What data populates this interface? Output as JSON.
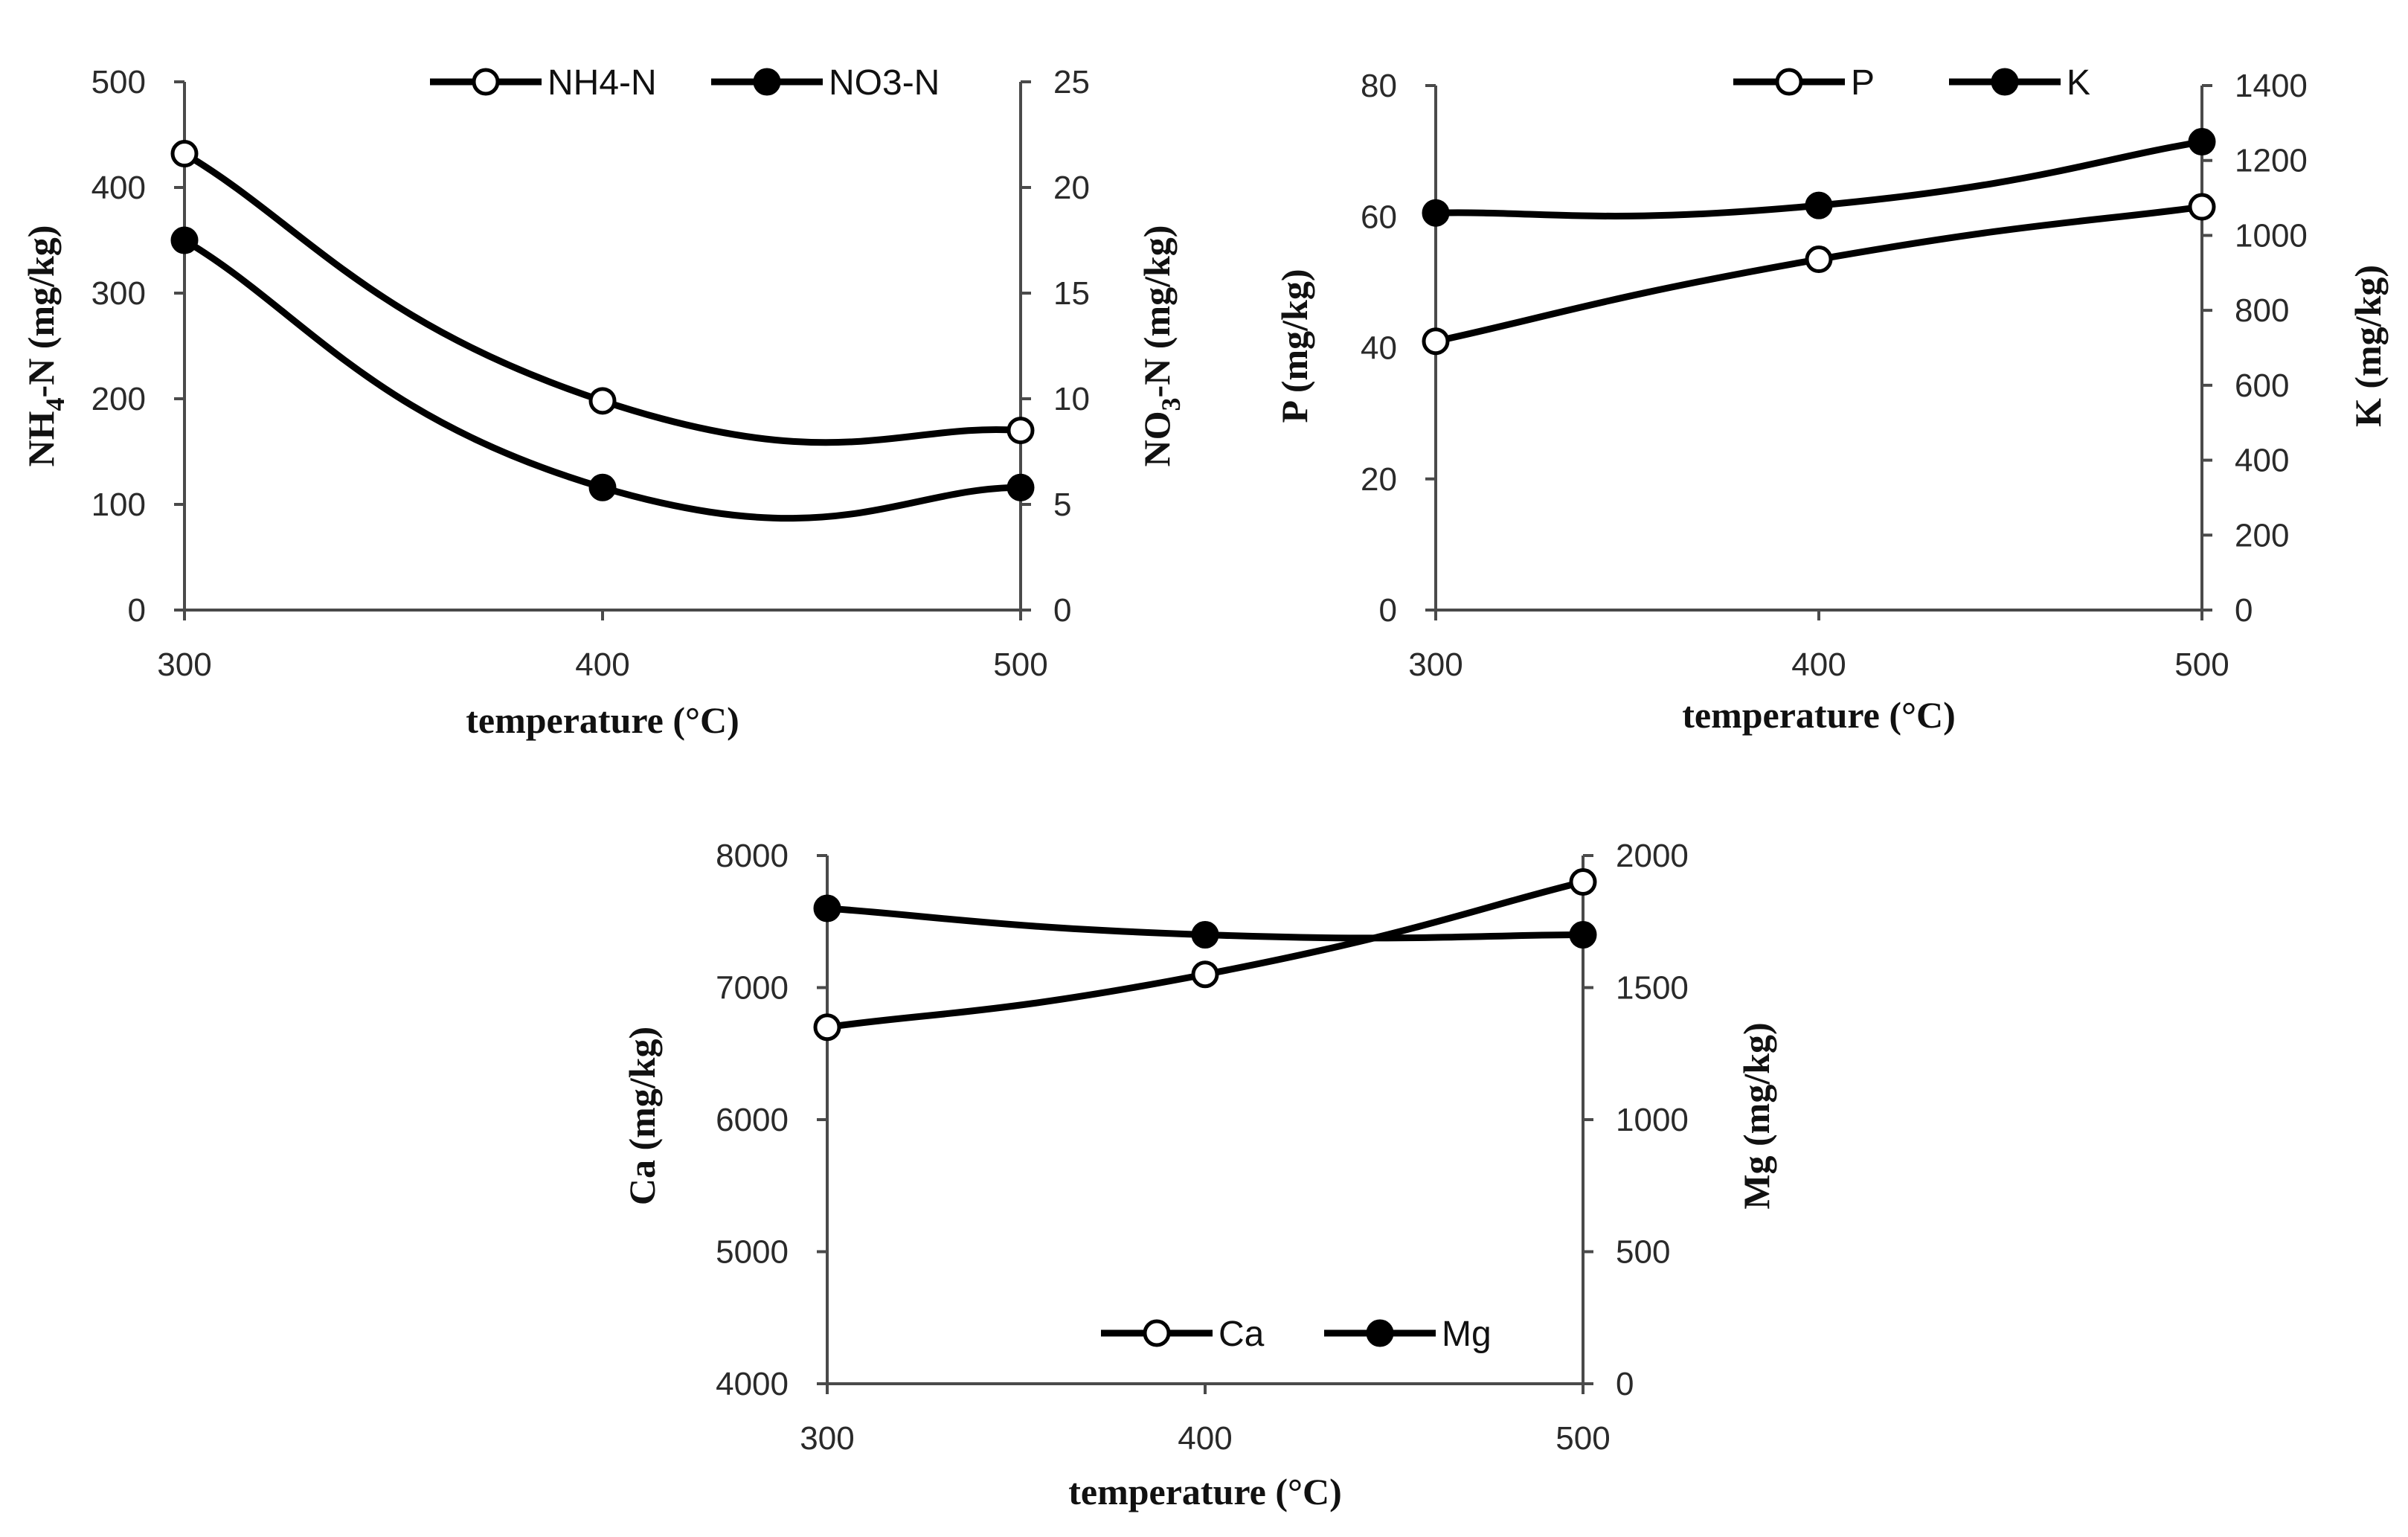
{
  "colors": {
    "line": "#000000",
    "axis": "#4a4a4a",
    "open_marker_fill": "#ffffff",
    "filled_marker_fill": "#000000"
  },
  "chart_data": [
    {
      "type": "line",
      "panel": "top-left",
      "x": [
        300,
        400,
        500
      ],
      "x_tick_labels": [
        "300",
        "400",
        "500"
      ],
      "xlabel": "temperature (°C)",
      "ylabel_left": {
        "base": "NH",
        "sub": "4",
        "rest": "-N (mg/kg)"
      },
      "ylabel_right": {
        "base": "NO",
        "sub": "3",
        "rest": "-N (mg/kg)"
      },
      "y_left_range": [
        0,
        500
      ],
      "y_left_ticks": [
        0,
        100,
        200,
        300,
        400,
        500
      ],
      "y_right_range": [
        0,
        25
      ],
      "y_right_ticks": [
        0,
        5,
        10,
        15,
        20,
        25
      ],
      "legend_position": "top-right",
      "series": [
        {
          "name": "NH4-N",
          "axis": "left",
          "marker": "open",
          "values": [
            432,
            198,
            170
          ]
        },
        {
          "name": "NO3-N",
          "axis": "right",
          "marker": "filled",
          "values": [
            17.5,
            5.8,
            5.8
          ]
        }
      ]
    },
    {
      "type": "line",
      "panel": "top-right",
      "x": [
        300,
        400,
        500
      ],
      "x_tick_labels": [
        "300",
        "400",
        "500"
      ],
      "xlabel": "temperature (°C)",
      "ylabel_left": {
        "base": "P (mg/kg)",
        "sub": "",
        "rest": ""
      },
      "ylabel_right": {
        "base": "K (mg/kg)",
        "sub": "",
        "rest": ""
      },
      "y_left_range": [
        0,
        80
      ],
      "y_left_ticks": [
        0,
        20,
        40,
        60,
        80
      ],
      "y_right_range": [
        0,
        1400
      ],
      "y_right_ticks": [
        0,
        200,
        400,
        600,
        800,
        1000,
        1200,
        1400
      ],
      "legend_position": "top-right",
      "series": [
        {
          "name": "P",
          "axis": "left",
          "marker": "open",
          "values": [
            41,
            53.5,
            61.5
          ]
        },
        {
          "name": "K",
          "axis": "right",
          "marker": "filled",
          "values": [
            1060,
            1080,
            1250
          ]
        }
      ]
    },
    {
      "type": "line",
      "panel": "bottom-center",
      "x": [
        300,
        400,
        500
      ],
      "x_tick_labels": [
        "300",
        "400",
        "500"
      ],
      "xlabel": "temperature (°C)",
      "ylabel_left": {
        "base": "Ca (mg/kg)",
        "sub": "",
        "rest": ""
      },
      "ylabel_right": {
        "base": "Mg (mg/kg)",
        "sub": "",
        "rest": ""
      },
      "y_left_range": [
        4000,
        8000
      ],
      "y_left_ticks": [
        4000,
        5000,
        6000,
        7000,
        8000
      ],
      "y_right_range": [
        0,
        2000
      ],
      "y_right_ticks": [
        0,
        500,
        1000,
        1500,
        2000
      ],
      "legend_position": "bottom-right",
      "series": [
        {
          "name": "Ca",
          "axis": "left",
          "marker": "open",
          "values": [
            6700,
            7100,
            7800
          ]
        },
        {
          "name": "Mg",
          "axis": "right",
          "marker": "filled",
          "values": [
            1800,
            1700,
            1700
          ]
        }
      ]
    }
  ]
}
